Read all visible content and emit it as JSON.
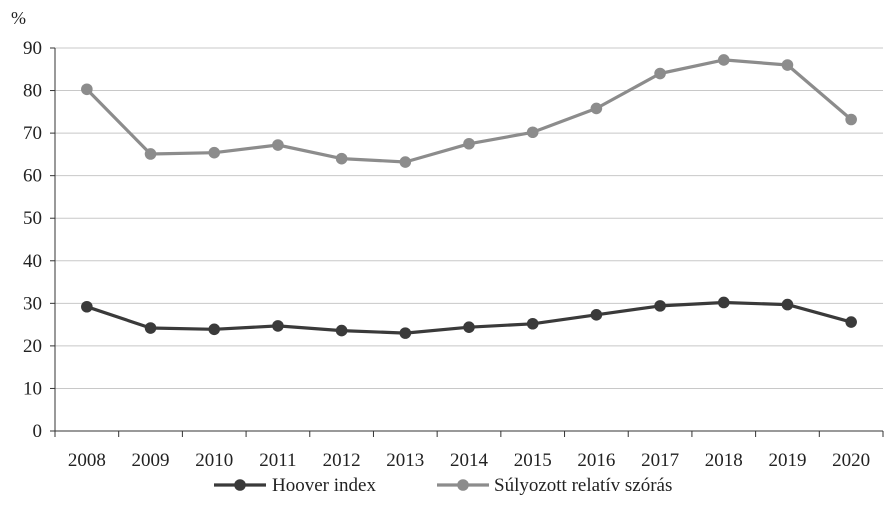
{
  "chart_data": {
    "type": "line",
    "ylabel": "%",
    "ylim": [
      0,
      90
    ],
    "yticks": [
      0,
      10,
      20,
      30,
      40,
      50,
      60,
      70,
      80,
      90
    ],
    "grid": true,
    "legend_position": "bottom",
    "categories": [
      "2008",
      "2009",
      "2010",
      "2011",
      "2012",
      "2013",
      "2014",
      "2015",
      "2016",
      "2017",
      "2018",
      "2019",
      "2020"
    ],
    "series": [
      {
        "name": "Hoover index",
        "color": "#3a3a3a",
        "values": [
          29.2,
          24.2,
          23.9,
          24.7,
          23.6,
          23.0,
          24.4,
          25.2,
          27.3,
          29.4,
          30.2,
          29.7,
          25.6
        ]
      },
      {
        "name": "Súlyozott relatív szórás",
        "color": "#8c8c8c",
        "values": [
          80.3,
          65.1,
          65.4,
          67.2,
          64.0,
          63.2,
          67.5,
          70.2,
          75.8,
          84.0,
          87.2,
          86.0,
          73.2
        ]
      }
    ]
  }
}
